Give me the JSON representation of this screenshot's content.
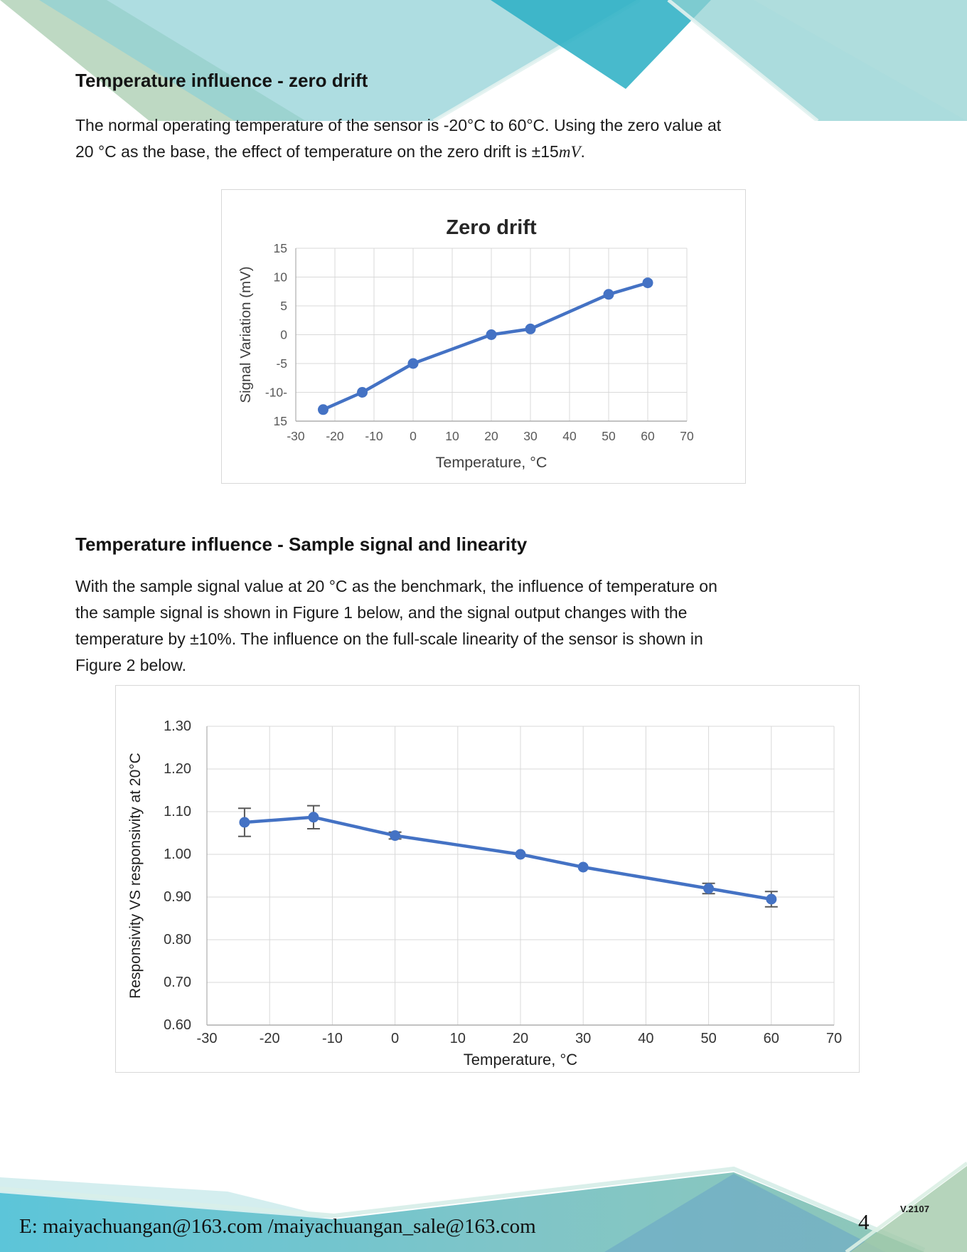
{
  "sections": [
    {
      "heading": "Temperature influence - zero drift",
      "paragraph_lines": [
        "The normal operating temperature of the sensor is -20°C to 60°C. Using the zero value at"
      ],
      "line2_prefix": " 20 °C as the base, the effect of temperature on the zero drift is ±15",
      "line2_math": "mV",
      "line2_suffix": "."
    },
    {
      "heading": "Temperature influence - Sample signal and linearity",
      "paragraph_lines": [
        "With the sample signal value at 20 °C as the benchmark, the influence of temperature on",
        "the sample signal is shown in Figure 1 below, and the signal output changes with the",
        "temperature by ±10%. The influence on the full-scale linearity of the sensor is shown in",
        "Figure 2 below."
      ]
    }
  ],
  "footer": {
    "email_line": "E: maiyachuangan@163.com /maiyachuangan_sale@163.com",
    "version": "V.2107",
    "page_number": "4"
  },
  "colors": {
    "series_blue": "#4472C4",
    "grid": "#D9D9D9",
    "axis": "#ADADAD",
    "error_bar": "#595959",
    "banner_dark_teal": "#2FB0C5",
    "banner_cyan": "#5CC5D9",
    "banner_teal": "#8FD0D5",
    "banner_sage": "#A3C9AA"
  },
  "chart_data": [
    {
      "type": "line",
      "title": "Zero drift",
      "xlabel": "Temperature, °C",
      "ylabel": "Signal Variation (mV)",
      "x": [
        -23,
        -13,
        0,
        20,
        30,
        50,
        60
      ],
      "y": [
        -13,
        -10,
        -5,
        0,
        1,
        7,
        9
      ],
      "xlim": [
        -30,
        70
      ],
      "ylim": [
        -15,
        15
      ],
      "xticks": [
        -30,
        -20,
        -10,
        0,
        10,
        20,
        30,
        40,
        50,
        60,
        70
      ],
      "xtick_labels": [
        "-30",
        "-20",
        "-10",
        "0",
        "10",
        "20",
        "30",
        "40",
        "50",
        "60",
        "70"
      ],
      "yticks": [
        15,
        10,
        5,
        0,
        -5,
        -10,
        -15
      ],
      "ytick_labels": [
        "15",
        "10",
        "5",
        "0",
        "-5",
        "-10-",
        "15"
      ],
      "grid": true,
      "legend": "none",
      "line_color": "#4472C4"
    },
    {
      "type": "line",
      "title": "",
      "xlabel": "Temperature, °C",
      "ylabel": "Responsivity VS responsivity at 20°C",
      "x": [
        -24,
        -13,
        0,
        20,
        30,
        50,
        60
      ],
      "y": [
        1.075,
        1.087,
        1.044,
        1.0,
        0.97,
        0.92,
        0.895
      ],
      "yerr": [
        0.033,
        0.027,
        0.008,
        0,
        0,
        0.012,
        0.018
      ],
      "xlim": [
        -30,
        70
      ],
      "ylim": [
        0.6,
        1.3
      ],
      "xticks": [
        -30,
        -20,
        -10,
        0,
        10,
        20,
        30,
        40,
        50,
        60,
        70
      ],
      "xtick_labels": [
        "-30",
        "-20",
        "-10",
        "0",
        "10",
        "20",
        "30",
        "40",
        "50",
        "60",
        "70"
      ],
      "yticks": [
        1.3,
        1.2,
        1.1,
        1.0,
        0.9,
        0.8,
        0.7,
        0.6
      ],
      "ytick_labels": [
        "1.30",
        "1.20",
        "1.10",
        "1.00",
        "0.90",
        "0.80",
        "0.70",
        "0.60"
      ],
      "grid": true,
      "legend": "none",
      "line_color": "#4472C4"
    }
  ]
}
